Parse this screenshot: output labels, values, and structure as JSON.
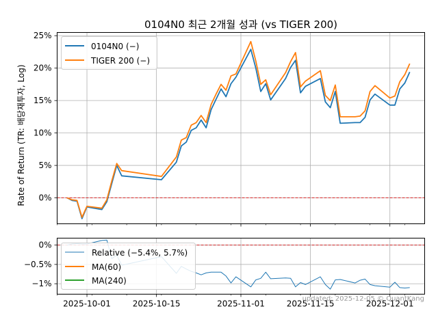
{
  "chart_data": [
    {
      "type": "line",
      "title": "0104N0 최근 2개월 성과 (vs TIGER 200)",
      "xlabel": "",
      "ylabel": "Rate of Return (TR: 배당재투자, Log)",
      "ylim": [
        -4,
        25.5
      ],
      "yticks": [
        0,
        5,
        10,
        15,
        20,
        25
      ],
      "ytick_labels": [
        "0%",
        "5%",
        "10%",
        "15%",
        "20%",
        "25%"
      ],
      "x_range": [
        "2025-09-25",
        "2025-12-08"
      ],
      "xticks": [
        "2025-10-01",
        "2025-10-15",
        "2025-11-01",
        "2025-11-15",
        "2025-12-01"
      ],
      "xtick_labels": [
        "2025-10-01",
        "2025-10-15",
        "2025-11-01",
        "2025-11-15",
        "2025-12-01"
      ],
      "grid": true,
      "legend_position": "top-left",
      "reference_line": {
        "y": 0,
        "color": "#d62728",
        "style": "dashed"
      },
      "series": [
        {
          "name": "0104N0 (−)",
          "color": "#1f77b4",
          "x": [
            "2025-09-27",
            "2025-09-28",
            "2025-09-29",
            "2025-09-30",
            "2025-10-01",
            "2025-10-04",
            "2025-10-05",
            "2025-10-06",
            "2025-10-07",
            "2025-10-08",
            "2025-10-16",
            "2025-10-19",
            "2025-10-20",
            "2025-10-21",
            "2025-10-22",
            "2025-10-23",
            "2025-10-24",
            "2025-10-25",
            "2025-10-26",
            "2025-10-27",
            "2025-10-28",
            "2025-10-29",
            "2025-10-30",
            "2025-10-31",
            "2025-11-03",
            "2025-11-04",
            "2025-11-05",
            "2025-11-06",
            "2025-11-07",
            "2025-11-10",
            "2025-11-11",
            "2025-11-12",
            "2025-11-13",
            "2025-11-14",
            "2025-11-17",
            "2025-11-18",
            "2025-11-19",
            "2025-11-20",
            "2025-11-21",
            "2025-11-24",
            "2025-11-25",
            "2025-11-26",
            "2025-11-27",
            "2025-11-28",
            "2025-12-01",
            "2025-12-02",
            "2025-12-03",
            "2025-12-04",
            "2025-12-05"
          ],
          "values": [
            0.0,
            -0.4,
            -0.5,
            -3.2,
            -1.4,
            -1.8,
            -0.6,
            2.2,
            5.0,
            3.4,
            2.8,
            5.5,
            8.0,
            8.6,
            10.4,
            10.8,
            12.0,
            10.8,
            13.6,
            15.2,
            16.8,
            15.6,
            17.6,
            18.6,
            22.9,
            20.0,
            16.4,
            17.6,
            15.1,
            18.4,
            20.1,
            21.2,
            16.2,
            17.2,
            18.4,
            14.8,
            13.9,
            16.4,
            11.5,
            11.6,
            11.6,
            12.4,
            15.1,
            16.0,
            14.3,
            14.3,
            16.8,
            17.7,
            19.4
          ]
        },
        {
          "name": "TIGER 200 (−)",
          "color": "#ff7f0e",
          "x": [
            "2025-09-27",
            "2025-09-28",
            "2025-09-29",
            "2025-09-30",
            "2025-10-01",
            "2025-10-04",
            "2025-10-05",
            "2025-10-06",
            "2025-10-07",
            "2025-10-08",
            "2025-10-16",
            "2025-10-19",
            "2025-10-20",
            "2025-10-21",
            "2025-10-22",
            "2025-10-23",
            "2025-10-24",
            "2025-10-25",
            "2025-10-26",
            "2025-10-27",
            "2025-10-28",
            "2025-10-29",
            "2025-10-30",
            "2025-10-31",
            "2025-11-03",
            "2025-11-04",
            "2025-11-05",
            "2025-11-06",
            "2025-11-07",
            "2025-11-10",
            "2025-11-11",
            "2025-11-12",
            "2025-11-13",
            "2025-11-14",
            "2025-11-17",
            "2025-11-18",
            "2025-11-19",
            "2025-11-20",
            "2025-11-21",
            "2025-11-24",
            "2025-11-25",
            "2025-11-26",
            "2025-11-27",
            "2025-11-28",
            "2025-12-01",
            "2025-12-02",
            "2025-12-03",
            "2025-12-04",
            "2025-12-05"
          ],
          "values": [
            0.0,
            -0.3,
            -0.4,
            -3.0,
            -1.3,
            -1.6,
            -0.3,
            2.6,
            5.3,
            4.2,
            3.3,
            6.3,
            8.9,
            9.3,
            11.2,
            11.6,
            12.7,
            11.6,
            14.4,
            16.0,
            17.5,
            16.6,
            18.8,
            19.1,
            24.1,
            21.1,
            17.5,
            18.2,
            15.9,
            19.3,
            21.0,
            22.4,
            17.1,
            18.0,
            19.6,
            15.8,
            15.0,
            17.4,
            12.5,
            12.5,
            12.6,
            13.4,
            16.4,
            17.3,
            15.4,
            15.7,
            17.9,
            19.0,
            20.7
          ]
        }
      ]
    },
    {
      "type": "line",
      "title": "",
      "xlabel": "",
      "ylabel": "",
      "ylim": [
        -1.27,
        0.18
      ],
      "yticks": [
        0,
        -0.5,
        -1
      ],
      "ytick_labels": [
        "0%",
        "−0.5%",
        "−1%"
      ],
      "x_range": [
        "2025-09-25",
        "2025-12-08"
      ],
      "xticks": [
        "2025-10-01",
        "2025-10-15",
        "2025-11-01",
        "2025-11-15",
        "2025-12-01"
      ],
      "xtick_labels": [
        "2025-10-01",
        "2025-10-15",
        "2025-11-01",
        "2025-11-15",
        "2025-12-01"
      ],
      "grid": true,
      "legend_position": "left",
      "reference_line": {
        "y": 0,
        "color": "#d62728",
        "style": "dashed"
      },
      "series": [
        {
          "name": "Relative (−5.4%, 5.7%)",
          "color": "#1f77b4",
          "x": [
            "2025-09-27",
            "2025-09-28",
            "2025-09-29",
            "2025-09-30",
            "2025-10-01",
            "2025-10-04",
            "2025-10-05",
            "2025-10-06",
            "2025-10-07",
            "2025-10-08",
            "2025-10-16",
            "2025-10-19",
            "2025-10-20",
            "2025-10-21",
            "2025-10-22",
            "2025-10-23",
            "2025-10-24",
            "2025-10-25",
            "2025-10-26",
            "2025-10-27",
            "2025-10-28",
            "2025-10-29",
            "2025-10-30",
            "2025-10-31",
            "2025-11-03",
            "2025-11-04",
            "2025-11-05",
            "2025-11-06",
            "2025-11-07",
            "2025-11-10",
            "2025-11-11",
            "2025-11-12",
            "2025-11-13",
            "2025-11-14",
            "2025-11-17",
            "2025-11-18",
            "2025-11-19",
            "2025-11-20",
            "2025-11-21",
            "2025-11-24",
            "2025-11-25",
            "2025-11-26",
            "2025-11-27",
            "2025-11-28",
            "2025-12-01",
            "2025-12-02",
            "2025-12-03",
            "2025-12-04",
            "2025-12-05"
          ],
          "values": [
            0.0,
            0.03,
            0.04,
            0.03,
            0.03,
            0.12,
            0.13,
            -0.35,
            -0.26,
            -0.52,
            -0.3,
            -0.73,
            -0.55,
            -0.62,
            -0.68,
            -0.72,
            -0.77,
            -0.72,
            -0.7,
            -0.7,
            -0.7,
            -0.8,
            -0.98,
            -0.82,
            -1.08,
            -0.9,
            -0.86,
            -0.7,
            -0.87,
            -0.85,
            -0.86,
            -1.08,
            -0.97,
            -1.02,
            -0.82,
            -1.02,
            -1.14,
            -0.9,
            -0.89,
            -0.98,
            -0.91,
            -0.88,
            -1.02,
            -1.05,
            -1.09,
            -0.96,
            -1.1,
            -1.11,
            -1.1
          ]
        },
        {
          "name": "MA(60)",
          "color": "#ff7f0e",
          "x": [],
          "values": []
        },
        {
          "name": "MA(240)",
          "color": "#2ca02c",
          "x": [],
          "values": []
        }
      ]
    }
  ],
  "footer": {
    "updated": "updated: 2025-12-05 © QuantKang"
  }
}
